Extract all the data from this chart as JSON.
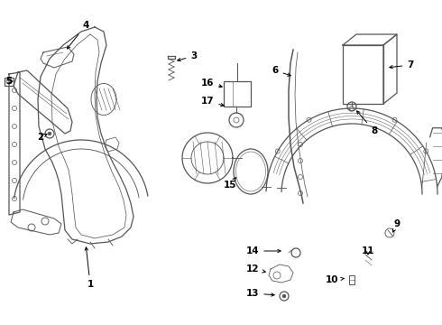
{
  "bg_color": "#ffffff",
  "line_color": "#555555",
  "label_color": "#000000",
  "figsize": [
    4.9,
    3.6
  ],
  "dpi": 100
}
